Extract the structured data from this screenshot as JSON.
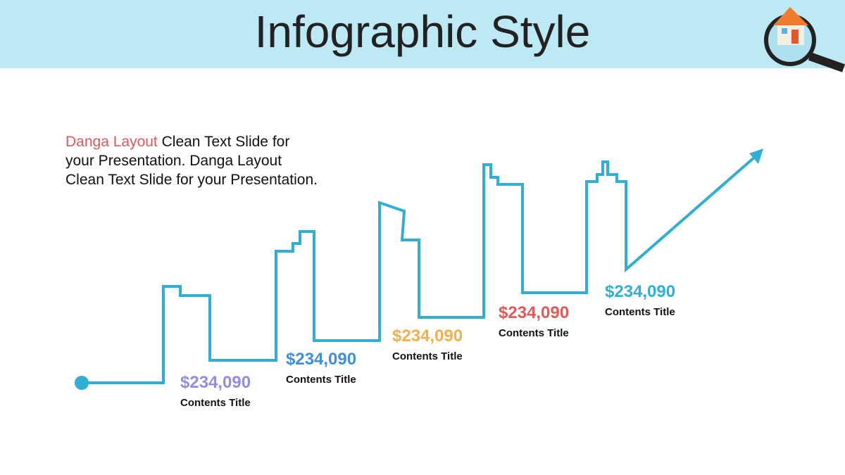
{
  "header": {
    "title": "Infographic Style"
  },
  "intro": {
    "highlight": "Danga Layout",
    "text": " Clean Text Slide for your Presentation. Danga Layout Clean Text Slide for your Presentation.",
    "highlight_color": "#e05a5a"
  },
  "items": [
    {
      "value": "$234,090",
      "title": "Contents Title",
      "color": "#8f8fe0"
    },
    {
      "value": "$234,090",
      "title": "Contents Title",
      "color": "#3f8fdc"
    },
    {
      "value": "$234,090",
      "title": "Contents Title",
      "color": "#f5b04c"
    },
    {
      "value": "$234,090",
      "title": "Contents Title",
      "color": "#e05a5a"
    },
    {
      "value": "$234,090",
      "title": "Contents Title",
      "color": "#2fb0d6"
    }
  ]
}
